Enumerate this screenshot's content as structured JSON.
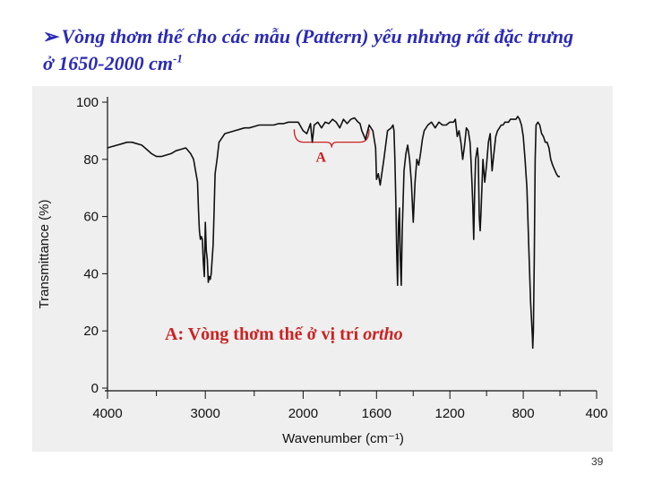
{
  "slide": {
    "title_bullet": "➢",
    "title_line1": "Vòng thơm thế cho các mẫu (Pattern) yếu nhưng rất đặc trưng",
    "title_line2": "ở 1650-2000 cm",
    "title_line2_sup": "-1",
    "page_number": "39",
    "title_color": "#2a2ab8",
    "annotation_color": "#cc2222"
  },
  "chart_data": {
    "type": "line",
    "xlabel": "Wavenumber (cm⁻¹)",
    "ylabel": "Transmittance (%)",
    "x_axis_note": "non-linear axis; scale changes at 2000 cm-1",
    "x_ticks": [
      4000,
      3000,
      2000,
      1600,
      1200,
      800,
      400
    ],
    "y_ticks": [
      0,
      20,
      40,
      60,
      80,
      100
    ],
    "xlim": [
      4000,
      400
    ],
    "ylim": [
      0,
      100
    ],
    "grid": false,
    "region_label": "A",
    "region_range": [
      2000,
      1650
    ],
    "annotation": {
      "prefix": "A: Vòng thơm thế ở vị trí ",
      "emphasis": "ortho"
    },
    "series": [
      {
        "x": [
          4000,
          3950,
          3900,
          3850,
          3800,
          3750,
          3700,
          3650,
          3600,
          3550,
          3500,
          3450,
          3400,
          3350,
          3300,
          3250,
          3200,
          3150,
          3120,
          3100,
          3080,
          3070,
          3060,
          3050,
          3040,
          3030,
          3020,
          3010,
          3000,
          2990,
          2980,
          2970,
          2960,
          2950,
          2940,
          2930,
          2920,
          2910,
          2900,
          2880,
          2860,
          2800,
          2750,
          2700,
          2650,
          2600,
          2550,
          2500,
          2450,
          2400,
          2350,
          2300,
          2250,
          2200,
          2150,
          2100,
          2050,
          2000,
          1980,
          1960,
          1950,
          1940,
          1920,
          1900,
          1880,
          1860,
          1840,
          1820,
          1800,
          1780,
          1760,
          1740,
          1720,
          1700,
          1690,
          1680,
          1660,
          1640,
          1620,
          1605,
          1600,
          1590,
          1580,
          1560,
          1540,
          1520,
          1510,
          1505,
          1500,
          1495,
          1490,
          1485,
          1480,
          1475,
          1470,
          1465,
          1460,
          1450,
          1440,
          1430,
          1420,
          1410,
          1400,
          1390,
          1380,
          1370,
          1360,
          1350,
          1340,
          1320,
          1300,
          1280,
          1260,
          1240,
          1220,
          1200,
          1180,
          1170,
          1160,
          1150,
          1140,
          1130,
          1120,
          1110,
          1100,
          1090,
          1085,
          1080,
          1075,
          1070,
          1065,
          1060,
          1050,
          1045,
          1040,
          1035,
          1030,
          1020,
          1010,
          1000,
          990,
          980,
          970,
          960,
          950,
          940,
          930,
          920,
          910,
          900,
          890,
          880,
          870,
          860,
          850,
          840,
          830,
          820,
          810,
          800,
          790,
          780,
          770,
          760,
          750,
          748,
          745,
          740,
          735,
          730,
          720,
          710,
          700,
          690,
          680,
          670,
          660,
          650,
          640,
          620,
          610,
          600
        ],
        "y": [
          84,
          84.5,
          85,
          85.5,
          86,
          86,
          85.5,
          85,
          83.5,
          82,
          81,
          81,
          81.5,
          82,
          83,
          83.5,
          84,
          82,
          80,
          76,
          72,
          62,
          55,
          52,
          53,
          52,
          44,
          39,
          58,
          48,
          45,
          37,
          39,
          38,
          40,
          45,
          50,
          62,
          75,
          80,
          86,
          89,
          89.5,
          90,
          90.5,
          91,
          91,
          91.5,
          92,
          92,
          92,
          92,
          92.5,
          92.5,
          93,
          93,
          93,
          90,
          89,
          92.5,
          86,
          92,
          93,
          91,
          93,
          92.5,
          94,
          93,
          91,
          94,
          92.5,
          94,
          94.5,
          93,
          92.5,
          90,
          87,
          92,
          90,
          84,
          73,
          75,
          71,
          80,
          90,
          91,
          92,
          90,
          80,
          66,
          48,
          36,
          58,
          63,
          45,
          36,
          55,
          76,
          82,
          85,
          80,
          72,
          58,
          72,
          80,
          78,
          82,
          87,
          90,
          92,
          93,
          91,
          93,
          92,
          92,
          93,
          93,
          94,
          88,
          90,
          86,
          80,
          85,
          91,
          90,
          86,
          80,
          72,
          64,
          52,
          68,
          80,
          84,
          80,
          60,
          55,
          62,
          80,
          72,
          78,
          86,
          89,
          76,
          82,
          88,
          90,
          91,
          92,
          92,
          93,
          93,
          93,
          94,
          94,
          94,
          94,
          95,
          94,
          92,
          88,
          80,
          70,
          50,
          30,
          18,
          14,
          20,
          45,
          80,
          92,
          93,
          92,
          89,
          88,
          86,
          86,
          84,
          80,
          78,
          75,
          74,
          74
        ]
      }
    ]
  }
}
